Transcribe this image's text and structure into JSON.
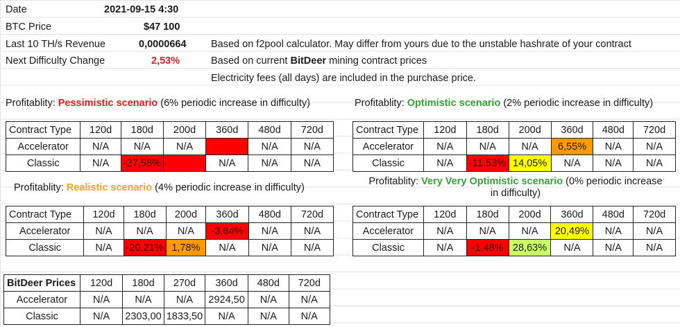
{
  "info": {
    "date_label": "Date",
    "date_value": "2021-09-15 4:30",
    "btc_label": "BTC Price",
    "btc_value": "$47 100",
    "rev_label": "Last 10 TH/s Revenue",
    "rev_value": "0,0000664",
    "diff_label": "Next Difficulty Change",
    "diff_value": "2,53%",
    "note_1": "Based on f2pool calculator. May differ from yours due to the unstable hashrate of your contract",
    "note_2_prefix": "Based on current ",
    "note_2_bold": "BitDeer",
    "note_2_suffix": " mining contract prices",
    "note_3": "Electricity fees (all days) are included in the purchase price."
  },
  "pessimistic": {
    "prefix": "Profitablity: ",
    "name": "Pessimistic scenario",
    "suffix": " (6% periodic increase in difficulty)",
    "headers": [
      "Contract Type",
      "120d",
      "180d",
      "200d",
      "360d",
      "480d",
      "720d"
    ],
    "rows": [
      [
        "Accelerator",
        "N/A",
        "N/A",
        "N/A",
        "",
        "N/A",
        "N/A"
      ],
      [
        "Classic",
        "N/A",
        "-27,58%",
        "",
        "N/A",
        "N/A",
        "N/A"
      ]
    ]
  },
  "optimistic": {
    "prefix": "Profitablity: ",
    "name": "Optimistic scenario",
    "suffix": " (2% periodic increase in difficulty)",
    "headers": [
      "Contract Type",
      "120d",
      "180d",
      "200d",
      "360d",
      "480d",
      "720d"
    ],
    "rows": [
      [
        "Accelerator",
        "N/A",
        "N/A",
        "N/A",
        "6,55%",
        "N/A",
        "N/A"
      ],
      [
        "Classic",
        "N/A",
        "-11,53%",
        "14,05%",
        "N/A",
        "N/A",
        "N/A"
      ]
    ]
  },
  "realistic": {
    "prefix": "Profitablity: ",
    "name": "Realistic scenario",
    "suffix": " (4% periodic increase in difficulty)",
    "headers": [
      "Contract Type",
      "120d",
      "180d",
      "200d",
      "360d",
      "480d",
      "720d"
    ],
    "rows": [
      [
        "Accelerator",
        "N/A",
        "N/A",
        "N/A",
        "-3,84%",
        "N/A",
        "N/A"
      ],
      [
        "Classic",
        "N/A",
        "-20,21%",
        "1,78%",
        "N/A",
        "N/A",
        "N/A"
      ]
    ]
  },
  "very_optimistic": {
    "prefix": "Profitablity: ",
    "name": "Very Very Optimistic scenario",
    "suffix": " (0% periodic increase",
    "line2": "in difficulty)",
    "headers": [
      "Contract Type",
      "120d",
      "180d",
      "200d",
      "360d",
      "480d",
      "720d"
    ],
    "rows": [
      [
        "Accelerator",
        "N/A",
        "N/A",
        "N/A",
        "20,49%",
        "N/A",
        "N/A"
      ],
      [
        "Classic",
        "N/A",
        "-1,48%",
        "28,63%",
        "N/A",
        "N/A",
        "N/A"
      ]
    ]
  },
  "prices": {
    "headers": [
      "BitDeer Prices",
      "120d",
      "180d",
      "270d",
      "360d",
      "480d",
      "720d"
    ],
    "rows": [
      [
        "Accelerator",
        "N/A",
        "N/A",
        "N/A",
        "2924,50",
        "N/A",
        "N/A"
      ],
      [
        "Classic",
        "N/A",
        "2303,00",
        "1833,50",
        "N/A",
        "N/A",
        "N/A"
      ]
    ]
  },
  "colors": {
    "negative": "#ff0000",
    "orange": "#ff9900",
    "yellow": "#ffff00",
    "lime": "#ccff66",
    "selection": "#2a64d6"
  }
}
